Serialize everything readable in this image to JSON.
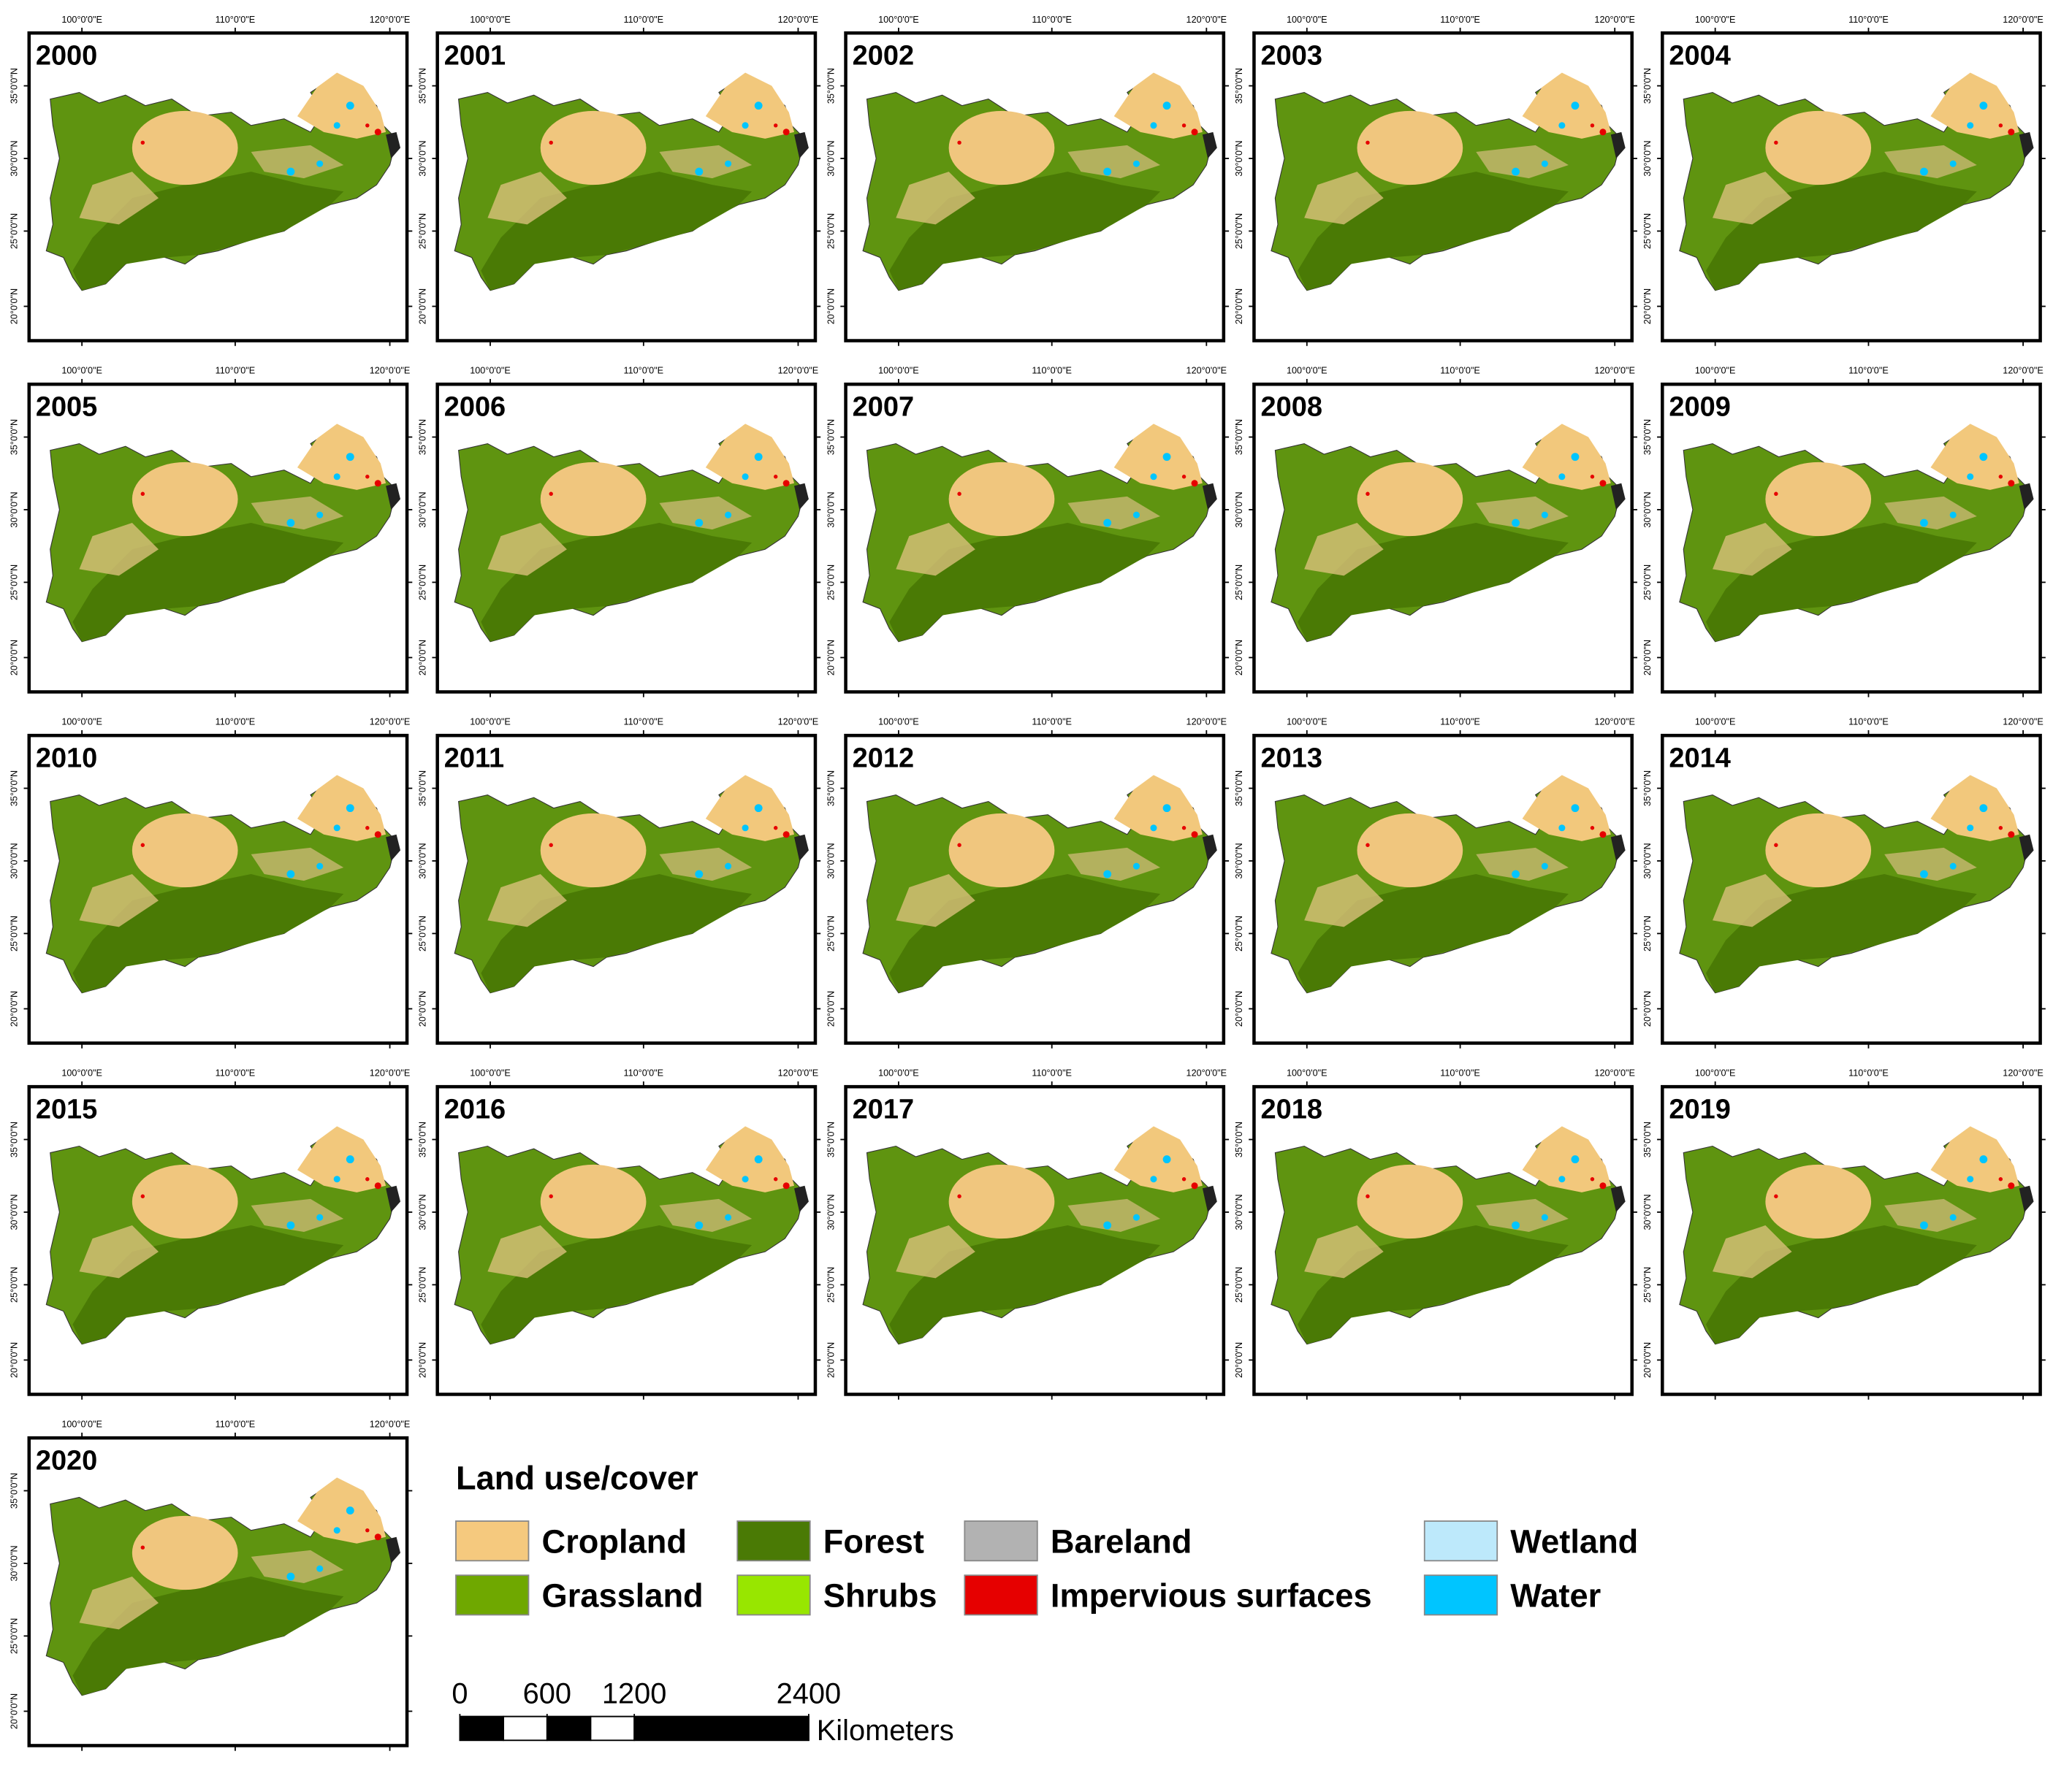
{
  "panels": [
    "2000",
    "2001",
    "2002",
    "2003",
    "2004",
    "2005",
    "2006",
    "2007",
    "2008",
    "2009",
    "2010",
    "2011",
    "2012",
    "2013",
    "2014",
    "2015",
    "2016",
    "2017",
    "2018",
    "2019",
    "2020"
  ],
  "lon_ticks": [
    "100°0'0\"E",
    "110°0'0\"E",
    "120°0'0\"E"
  ],
  "lat_ticks": [
    "35°0'0\"N",
    "30°0'0\"N",
    "25°0'0\"N",
    "20°0'0\"N"
  ],
  "legend": {
    "title": "Land use/cover",
    "items": [
      {
        "name": "Cropland",
        "color": "#f5c97e"
      },
      {
        "name": "Forest",
        "color": "#4a7a05"
      },
      {
        "name": "Bareland",
        "color": "#b2b2b2"
      },
      {
        "name": "Wetland",
        "color": "#bde9fb"
      },
      {
        "name": "Grassland",
        "color": "#6fa800"
      },
      {
        "name": "Shrubs",
        "color": "#98e600"
      },
      {
        "name": "Impervious surfaces",
        "color": "#e60000"
      },
      {
        "name": "Water",
        "color": "#00c5ff"
      }
    ]
  },
  "scale_bar": {
    "ticks": [
      0,
      600,
      1200,
      2400
    ],
    "unit": "Kilometers"
  }
}
